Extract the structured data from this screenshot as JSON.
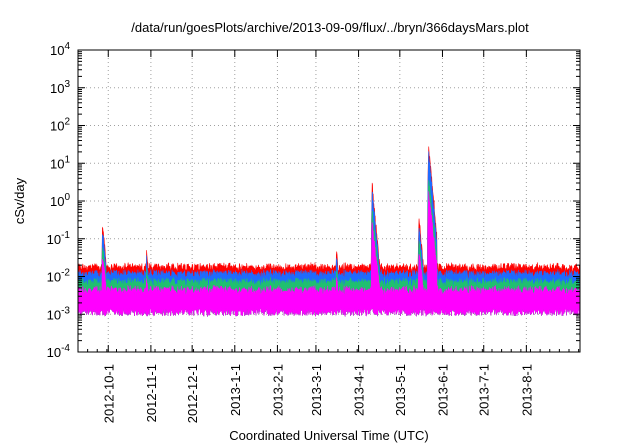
{
  "chart_data": {
    "type": "area",
    "title": "/data/run/goesPlots/archive/2013-09-09/flux/../bryn/366daysMars.plot",
    "xlabel": "Coordinated Universal Time (UTC)",
    "ylabel": "cSv/day",
    "yscale": "log",
    "ylim": [
      0.0001,
      10000
    ],
    "xlim": [
      "2012-09-09",
      "2013-09-09"
    ],
    "grid": true,
    "y_ticks": [
      {
        "value": 0.0001,
        "base": "10",
        "exp": "-4"
      },
      {
        "value": 0.001,
        "base": "10",
        "exp": "-3"
      },
      {
        "value": 0.01,
        "base": "10",
        "exp": "-2"
      },
      {
        "value": 0.1,
        "base": "10",
        "exp": "-1"
      },
      {
        "value": 1,
        "base": "10",
        "exp": "0"
      },
      {
        "value": 10,
        "base": "10",
        "exp": "1"
      },
      {
        "value": 100,
        "base": "10",
        "exp": "2"
      },
      {
        "value": 1000,
        "base": "10",
        "exp": "3"
      },
      {
        "value": 10000,
        "base": "10",
        "exp": "4"
      }
    ],
    "x_ticks": [
      "2012-10-1",
      "2012-11-1",
      "2012-12-1",
      "2013-1-1",
      "2013-2-1",
      "2013-3-1",
      "2013-4-1",
      "2013-5-1",
      "2013-6-1",
      "2013-7-1",
      "2013-8-1"
    ],
    "series_colors": {
      "red": "#ff0000",
      "blue": "#1e6bff",
      "green": "#20c070",
      "magenta": "#ff00ff"
    },
    "baseline": {
      "red_top": 0.016,
      "blue_top": 0.011,
      "green_top": 0.0065,
      "magenta_top": 0.004,
      "magenta_bottom": 0.0012
    },
    "events": [
      {
        "date": "2012-09-27",
        "peak": 0.2
      },
      {
        "date": "2012-10-29",
        "peak": 0.045
      },
      {
        "date": "2013-03-16",
        "peak": 0.04
      },
      {
        "date": "2013-04-11",
        "peak": 2.3
      },
      {
        "date": "2013-05-15",
        "peak": 0.3
      },
      {
        "date": "2013-05-22",
        "peak": 25
      }
    ]
  }
}
